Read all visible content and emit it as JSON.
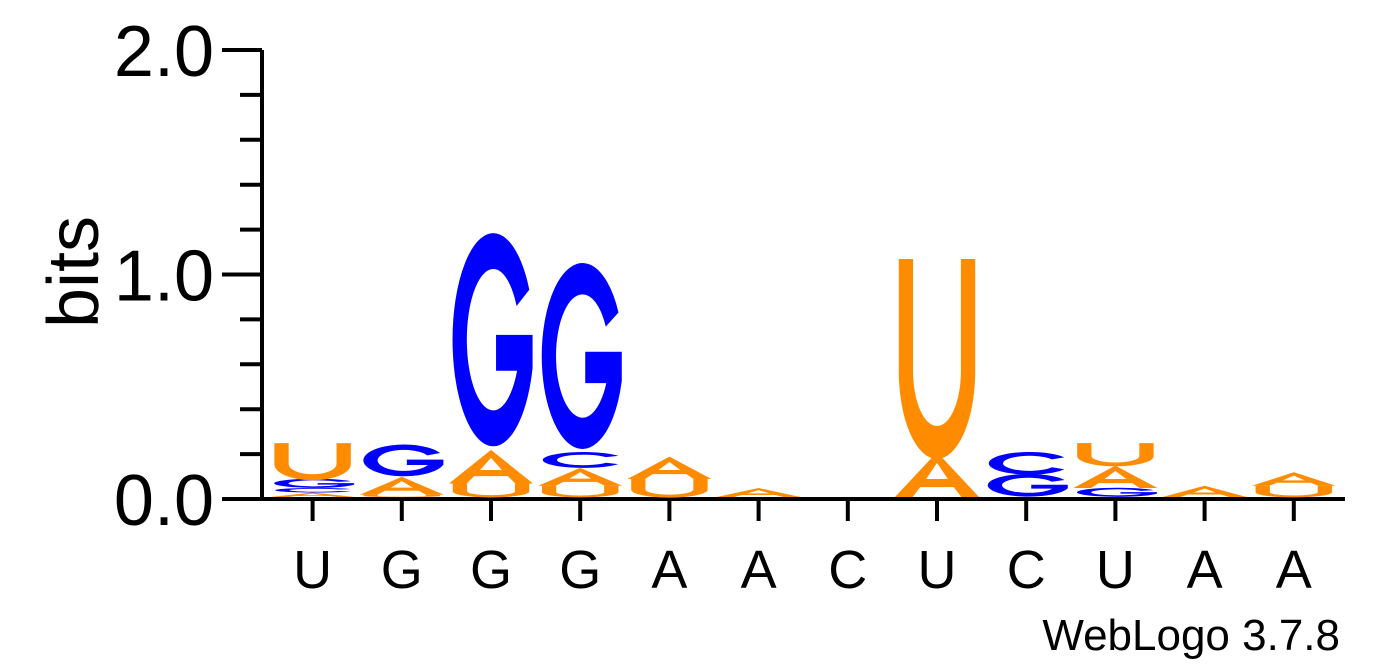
{
  "chart_data": {
    "type": "sequence-logo",
    "ylabel": "bits",
    "ylim": [
      0,
      2
    ],
    "yticks": [
      "0.0",
      "1.0",
      "2.0"
    ],
    "positions": [
      "U",
      "G",
      "G",
      "G",
      "A",
      "A",
      "C",
      "U",
      "C",
      "U",
      "A",
      "A"
    ],
    "colors": {
      "A": "#ff8c00",
      "U": "#ff8c00",
      "G": "#0000ff",
      "C": "#0000ff"
    },
    "stacks": [
      [
        {
          "letter": "A",
          "bits": 0.02
        },
        {
          "letter": "C",
          "bits": 0.02
        },
        {
          "letter": "G",
          "bits": 0.04
        },
        {
          "letter": "U",
          "bits": 0.16
        }
      ],
      [
        {
          "letter": "U",
          "bits": 0.01
        },
        {
          "letter": "A",
          "bits": 0.08
        },
        {
          "letter": "G",
          "bits": 0.14
        }
      ],
      [
        {
          "letter": "U",
          "bits": 0.06
        },
        {
          "letter": "A",
          "bits": 0.15
        },
        {
          "letter": "G",
          "bits": 0.94
        }
      ],
      [
        {
          "letter": "U",
          "bits": 0.05
        },
        {
          "letter": "A",
          "bits": 0.08
        },
        {
          "letter": "C",
          "bits": 0.07
        },
        {
          "letter": "G",
          "bits": 0.82
        }
      ],
      [
        {
          "letter": "U",
          "bits": 0.08
        },
        {
          "letter": "A",
          "bits": 0.1
        }
      ],
      [
        {
          "letter": "A",
          "bits": 0.04
        }
      ],
      [],
      [
        {
          "letter": "A",
          "bits": 0.2
        },
        {
          "letter": "U",
          "bits": 0.86
        }
      ],
      [
        {
          "letter": "G",
          "bits": 0.1
        },
        {
          "letter": "C",
          "bits": 0.1
        }
      ],
      [
        {
          "letter": "G",
          "bits": 0.04
        },
        {
          "letter": "A",
          "bits": 0.1
        },
        {
          "letter": "U",
          "bits": 0.1
        }
      ],
      [
        {
          "letter": "A",
          "bits": 0.05
        }
      ],
      [
        {
          "letter": "U",
          "bits": 0.05
        },
        {
          "letter": "A",
          "bits": 0.06
        }
      ]
    ]
  },
  "footer": {
    "label": "WebLogo 3.7.8"
  }
}
